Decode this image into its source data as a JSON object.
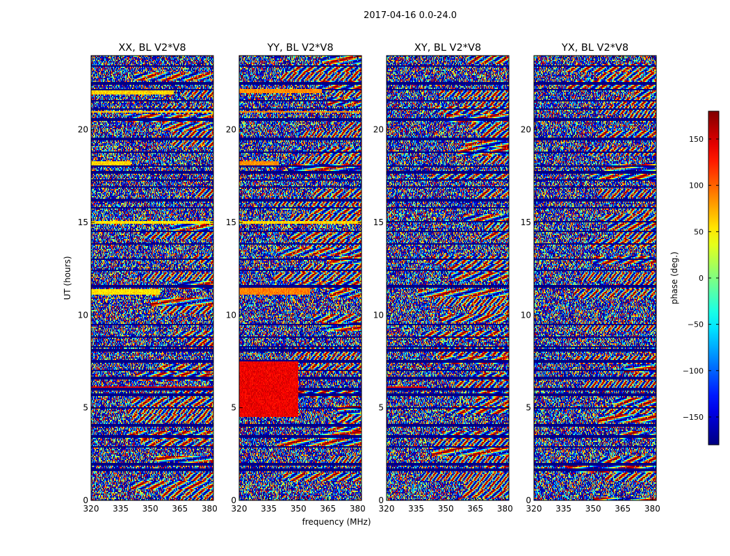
{
  "figure": {
    "suptitle": "2017-04-16 0.0-24.0"
  },
  "chart_data": {
    "type": "heatmap",
    "panels": [
      {
        "title": "XX, BL V2*V8",
        "polarization": "XX"
      },
      {
        "title": "YY, BL V2*V8",
        "polarization": "YY"
      },
      {
        "title": "XY, BL V2*V8",
        "polarization": "XY"
      },
      {
        "title": "YX, BL V2*V8",
        "polarization": "YX"
      }
    ],
    "xlabel": "frequency (MHz)",
    "ylabel": "UT (hours)",
    "xlim": [
      320,
      382
    ],
    "ylim": [
      0,
      24
    ],
    "xticks": [
      320,
      335,
      350,
      365,
      380
    ],
    "yticks": [
      0,
      5,
      10,
      15,
      20
    ],
    "colorbar": {
      "label": "phase (deg.)",
      "range": [
        -180,
        180
      ],
      "ticks": [
        150,
        100,
        50,
        0,
        -50,
        -100,
        -150
      ],
      "tick_labels": [
        "150",
        "100",
        "50",
        "0",
        "−50",
        "−100",
        "−150"
      ],
      "colormap": "jet"
    },
    "blank_rows_ut": [
      1.65,
      1.95,
      2.9,
      3.45,
      4.0,
      4.1,
      5.0,
      5.7,
      6.0,
      6.6,
      7.0,
      7.5,
      8.1,
      8.3,
      8.8,
      9.5,
      11.55,
      12.4,
      13.0,
      13.85,
      14.5,
      15.05,
      15.8,
      16.2,
      16.9,
      17.3,
      17.7,
      18.05,
      18.8,
      19.5,
      20.55,
      21.1,
      21.55,
      22.15,
      22.5,
      23.45
    ],
    "bright_bands": [
      {
        "panel": 0,
        "ut": [
          11.1,
          11.4
        ],
        "phase": 55,
        "xmax": 355
      },
      {
        "panel": 1,
        "ut": [
          11.1,
          11.5
        ],
        "phase": 90,
        "xmax": 356
      },
      {
        "panel": 0,
        "ut": [
          21.9,
          22.1
        ],
        "phase": 60,
        "xmax": 362
      },
      {
        "panel": 1,
        "ut": [
          22.0,
          22.2
        ],
        "phase": 85,
        "xmax": 362
      },
      {
        "panel": 0,
        "ut": [
          20.9,
          21.0
        ],
        "phase": 60,
        "xmax": 382
      },
      {
        "panel": 1,
        "ut": [
          20.9,
          21.0
        ],
        "phase": 85,
        "xmax": 382
      },
      {
        "panel": 0,
        "ut": [
          18.1,
          18.3
        ],
        "phase": 60,
        "xmax": 340
      },
      {
        "panel": 1,
        "ut": [
          18.1,
          18.3
        ],
        "phase": 85,
        "xmax": 340
      },
      {
        "panel": 0,
        "ut": [
          14.9,
          15.1
        ],
        "phase": 55,
        "xmax": 382
      },
      {
        "panel": 1,
        "ut": [
          14.9,
          15.1
        ],
        "phase": 60,
        "xmax": 382
      },
      {
        "panel": 0,
        "ut": [
          6.05,
          6.15
        ],
        "phase": 150,
        "xmax": 382
      },
      {
        "panel": 1,
        "ut": [
          4.5,
          7.5
        ],
        "phase": 140,
        "xmax": 350
      },
      {
        "panel": 2,
        "ut": [
          6.05,
          6.15
        ],
        "phase": 140,
        "xmax": 340
      }
    ]
  }
}
